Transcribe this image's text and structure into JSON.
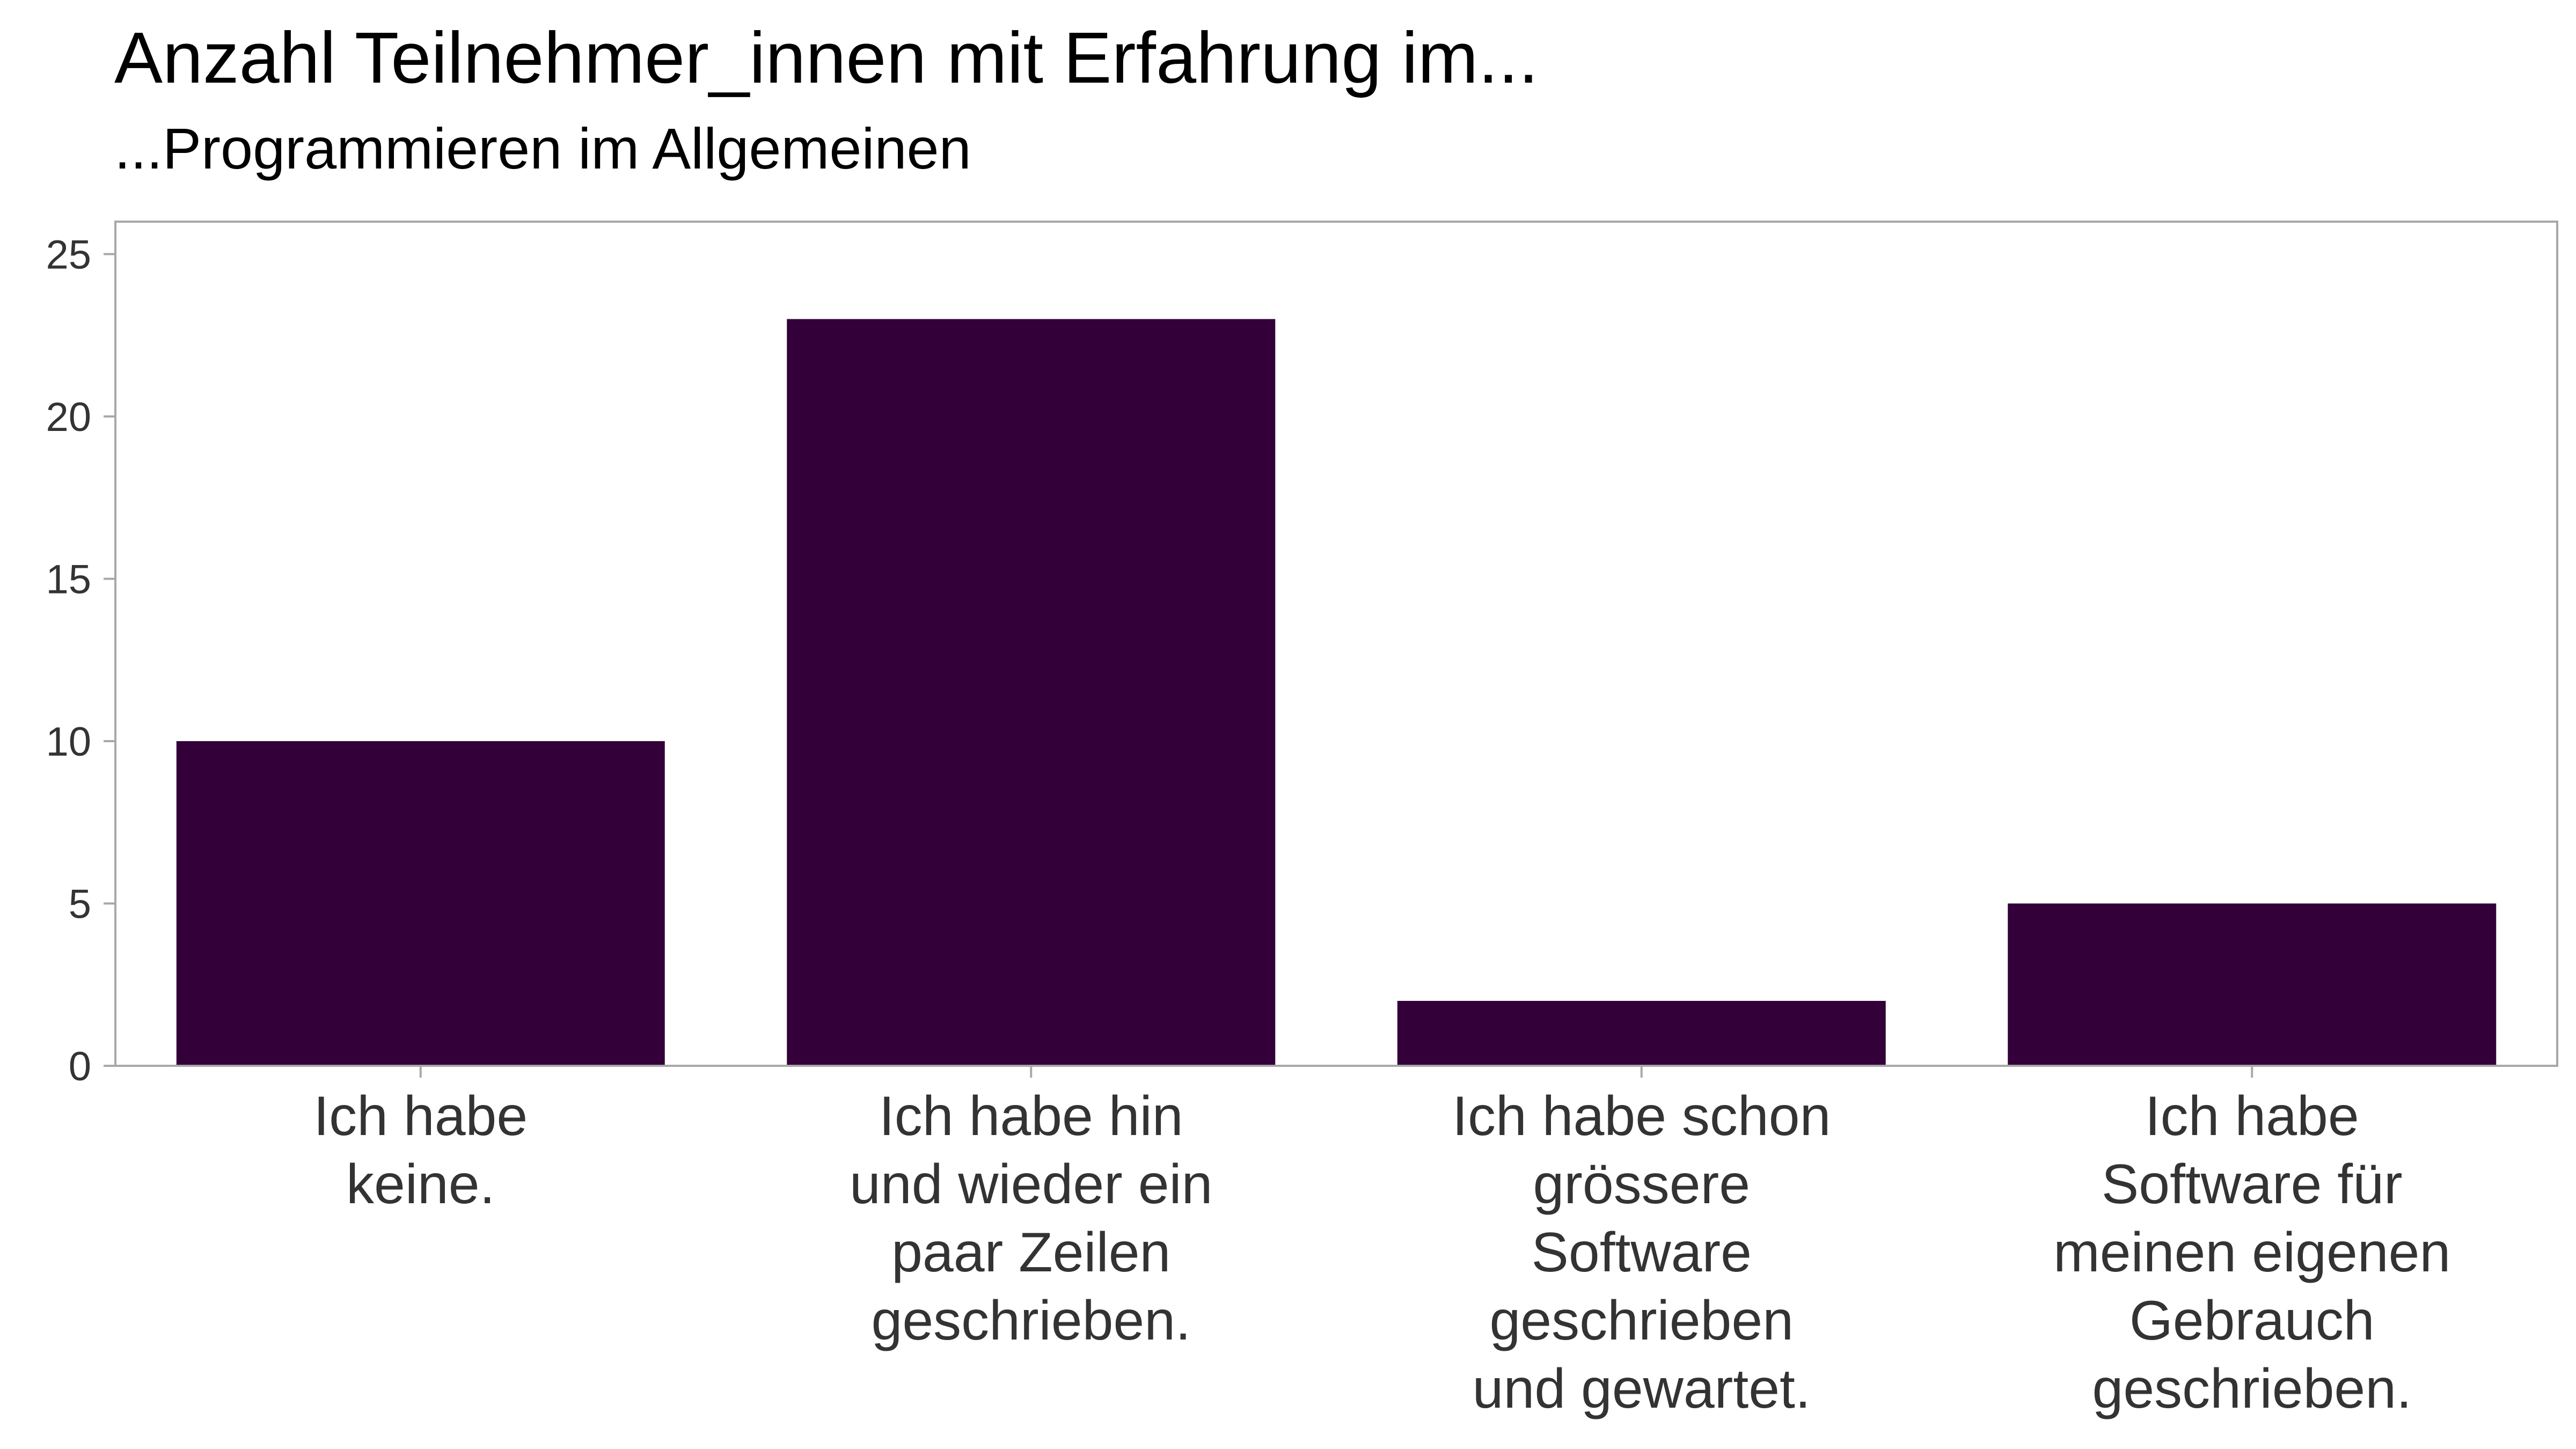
{
  "chart_data": {
    "type": "bar",
    "title": "Anzahl Teilnehmer_innen mit Erfahrung im...",
    "subtitle": "...Programmieren im Allgemeinen",
    "xlabel": "",
    "ylabel": "",
    "ylim": [
      0,
      26
    ],
    "yticks": [
      0,
      5,
      10,
      15,
      20,
      25
    ],
    "grid": false,
    "legend": "none",
    "categories": [
      [
        "Ich habe",
        "keine."
      ],
      [
        "Ich habe hin",
        "und wieder ein",
        "paar Zeilen",
        "geschrieben."
      ],
      [
        "Ich habe schon",
        "grössere",
        "Software",
        "geschrieben",
        "und gewartet."
      ],
      [
        "Ich habe",
        "Software für",
        "meinen eigenen",
        "Gebrauch",
        "geschrieben."
      ]
    ],
    "values": [
      10,
      23,
      2,
      5
    ],
    "bar_color": "#33003A",
    "panel_border_color": "#A8A8A8"
  }
}
